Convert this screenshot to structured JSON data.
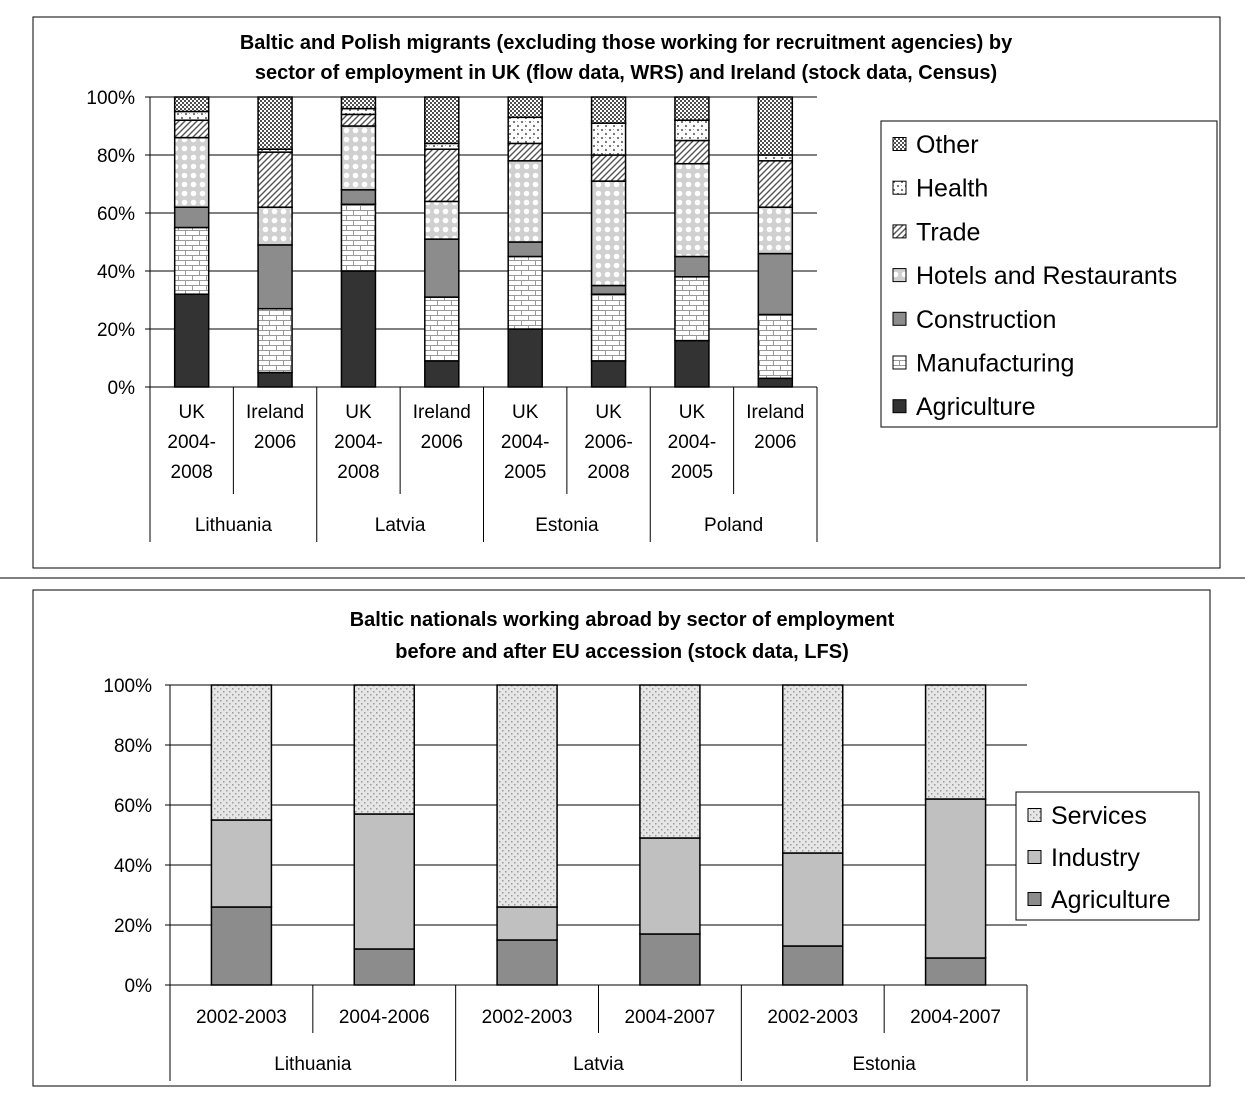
{
  "chart_data": [
    {
      "type": "bar",
      "stacked": true,
      "percent": true,
      "title": [
        "Baltic and Polish migrants (excluding those working for recruitment agencies) by",
        "sector of employment in UK (flow data, WRS) and Ireland (stock data, Census)"
      ],
      "ylim": [
        0,
        100
      ],
      "yticks": [
        "0%",
        "20%",
        "40%",
        "60%",
        "80%",
        "100%"
      ],
      "grid": true,
      "legend_position": "right",
      "categories": [
        [
          "UK",
          "2004-",
          "2008"
        ],
        [
          "Ireland",
          "2006"
        ],
        [
          "UK",
          "2004-",
          "2008"
        ],
        [
          "Ireland",
          "2006"
        ],
        [
          "UK",
          "2004-",
          "2005"
        ],
        [
          "UK",
          "2006-",
          "2008"
        ],
        [
          "UK",
          "2004-",
          "2005"
        ],
        [
          "Ireland",
          "2006"
        ]
      ],
      "groups": [
        {
          "label": "Lithuania",
          "span": 2
        },
        {
          "label": "Latvia",
          "span": 2
        },
        {
          "label": "Estonia",
          "span": 2
        },
        {
          "label": "Poland",
          "span": 2
        }
      ],
      "series": [
        {
          "name": "Agriculture",
          "pattern": "solid-dark",
          "values": [
            32,
            5,
            40,
            9,
            20,
            9,
            16,
            3
          ]
        },
        {
          "name": "Manufacturing",
          "pattern": "brick",
          "values": [
            23,
            22,
            23,
            22,
            25,
            23,
            22,
            22
          ]
        },
        {
          "name": "Construction",
          "pattern": "solid-gray",
          "values": [
            7,
            22,
            5,
            20,
            5,
            3,
            7,
            21
          ]
        },
        {
          "name": "Hotels and Restaurants",
          "pattern": "circles",
          "values": [
            24,
            13,
            22,
            13,
            28,
            36,
            32,
            16
          ]
        },
        {
          "name": "Trade",
          "pattern": "diagonal",
          "values": [
            6,
            19,
            4,
            18,
            6,
            9,
            8,
            16
          ]
        },
        {
          "name": "Health",
          "pattern": "speckle",
          "values": [
            3,
            1,
            2,
            2,
            9,
            11,
            7,
            2
          ]
        },
        {
          "name": "Other",
          "pattern": "dots",
          "values": [
            5,
            18,
            4,
            16,
            7,
            9,
            8,
            20
          ]
        }
      ]
    },
    {
      "type": "bar",
      "stacked": true,
      "percent": true,
      "title": [
        "Baltic nationals working abroad by sector of employment",
        "before and after EU accession (stock data, LFS)"
      ],
      "ylim": [
        0,
        100
      ],
      "yticks": [
        "0%",
        "20%",
        "40%",
        "60%",
        "80%",
        "100%"
      ],
      "grid": true,
      "legend_position": "right",
      "categories": [
        [
          "2002-2003"
        ],
        [
          "2004-2006"
        ],
        [
          "2002-2003"
        ],
        [
          "2004-2007"
        ],
        [
          "2002-2003"
        ],
        [
          "2004-2007"
        ]
      ],
      "groups": [
        {
          "label": "Lithuania",
          "span": 2
        },
        {
          "label": "Latvia",
          "span": 2
        },
        {
          "label": "Estonia",
          "span": 2
        }
      ],
      "series": [
        {
          "name": "Agriculture",
          "pattern": "solid-gray",
          "values": [
            26,
            12,
            15,
            17,
            13,
            9
          ]
        },
        {
          "name": "Industry",
          "pattern": "solid-light",
          "values": [
            29,
            45,
            11,
            32,
            31,
            53
          ]
        },
        {
          "name": "Services",
          "pattern": "fine-dots",
          "values": [
            45,
            43,
            74,
            51,
            56,
            38
          ]
        }
      ]
    }
  ]
}
